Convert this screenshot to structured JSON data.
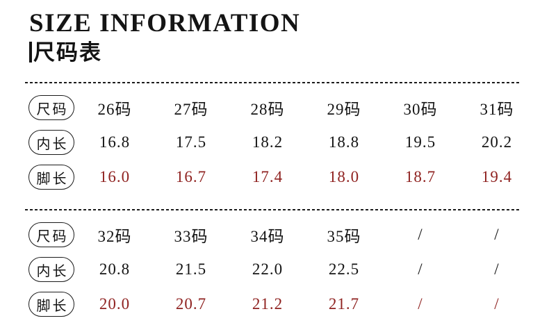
{
  "header": {
    "title": "SIZE INFORMATION",
    "subtitle": "尺码表"
  },
  "colors": {
    "background": "#ffffff",
    "text": "#141414",
    "highlight_red": "#8f2220",
    "divider": "#1c1c1c"
  },
  "tables": [
    {
      "name": "sizes 26-31",
      "rows": [
        {
          "label": "尺码",
          "values": [
            "26码",
            "27码",
            "28码",
            "29码",
            "30码",
            "31码"
          ]
        },
        {
          "label": "内长",
          "values": [
            "16.8",
            "17.5",
            "18.2",
            "18.8",
            "19.5",
            "20.2"
          ]
        },
        {
          "label": "脚长",
          "values": [
            "16.0",
            "16.7",
            "17.4",
            "18.0",
            "18.7",
            "19.4"
          ]
        }
      ]
    },
    {
      "name": "sizes 32-35",
      "rows": [
        {
          "label": "尺码",
          "values": [
            "32码",
            "33码",
            "34码",
            "35码",
            "/",
            "/"
          ]
        },
        {
          "label": "内长",
          "values": [
            "20.8",
            "21.5",
            "22.0",
            "22.5",
            "/",
            "/"
          ]
        },
        {
          "label": "脚长",
          "values": [
            "20.0",
            "20.7",
            "21.2",
            "21.7",
            "/",
            "/"
          ]
        }
      ]
    }
  ]
}
